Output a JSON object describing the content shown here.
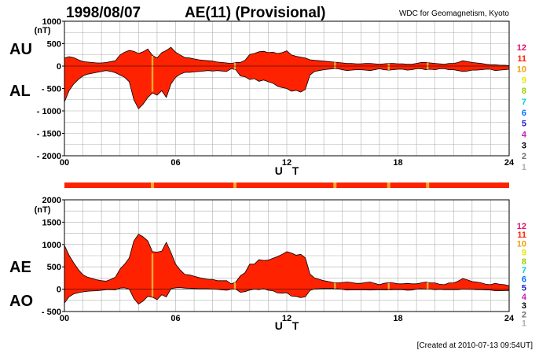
{
  "header": {
    "date": "1998/08/07",
    "title": "AE(11) (Provisional)",
    "source": "WDC for Geomagnetism, Kyoto"
  },
  "footer": {
    "created": "[Created at 2010-07-13 09:54UT]"
  },
  "colors": {
    "fill": "#ff2200",
    "outline": "#000000",
    "quality_yellow": "#f0a830"
  },
  "legend": {
    "levels": [
      {
        "label": "12",
        "color": "#e0106a"
      },
      {
        "label": "11",
        "color": "#ff2200"
      },
      {
        "label": "10",
        "color": "#f0a000"
      },
      {
        "label": "9",
        "color": "#e6e600"
      },
      {
        "label": "8",
        "color": "#9ad000"
      },
      {
        "label": "7",
        "color": "#00d0d0"
      },
      {
        "label": "6",
        "color": "#0070ff"
      },
      {
        "label": "5",
        "color": "#2020c0"
      },
      {
        "label": "4",
        "color": "#c020c0"
      },
      {
        "label": "3",
        "color": "#000000"
      },
      {
        "label": "2",
        "color": "#707070"
      },
      {
        "label": "1",
        "color": "#b0b0b0"
      }
    ]
  },
  "station_bar": {
    "base": "#ff2200",
    "marks": [
      {
        "hour": 4.75,
        "color": "#f0a830"
      },
      {
        "hour": 9.2,
        "color": "#f0a830"
      },
      {
        "hour": 14.6,
        "color": "#f0a830"
      },
      {
        "hour": 17.5,
        "color": "#f0a830"
      },
      {
        "hour": 19.6,
        "color": "#f0a830"
      }
    ]
  },
  "chart_data": [
    {
      "type": "area",
      "upper_label": "AU",
      "lower_label": "AL",
      "unit": "(nT)",
      "xlabel": "U T",
      "xlim": [
        0,
        24
      ],
      "ylim": [
        -2000,
        1000
      ],
      "xticks": [
        "00",
        "06",
        "12",
        "18",
        "24"
      ],
      "yticks": [
        "1000",
        "500",
        "0",
        "- 500",
        "- 1000",
        "- 1500",
        "- 2000"
      ],
      "x": [
        0,
        0.25,
        0.5,
        0.75,
        1,
        1.25,
        1.5,
        1.75,
        2,
        2.25,
        2.5,
        2.75,
        3,
        3.25,
        3.5,
        3.75,
        4,
        4.25,
        4.5,
        4.75,
        5,
        5.25,
        5.5,
        5.75,
        6,
        6.25,
        6.5,
        6.75,
        7,
        7.25,
        7.5,
        7.75,
        8,
        8.25,
        8.5,
        8.75,
        9,
        9.25,
        9.5,
        9.75,
        10,
        10.25,
        10.5,
        10.75,
        11,
        11.25,
        11.5,
        11.75,
        12,
        12.25,
        12.5,
        12.75,
        13,
        13.25,
        13.5,
        13.75,
        14,
        14.25,
        14.5,
        14.75,
        15,
        15.25,
        15.5,
        15.75,
        16,
        16.25,
        16.5,
        16.75,
        17,
        17.25,
        17.5,
        17.75,
        18,
        18.25,
        18.5,
        18.75,
        19,
        19.25,
        19.5,
        19.75,
        20,
        20.25,
        20.5,
        20.75,
        21,
        21.25,
        21.5,
        21.75,
        22,
        22.25,
        22.5,
        22.75,
        23,
        23.25,
        23.5,
        23.75,
        24
      ],
      "series": [
        {
          "name": "AU",
          "values": [
            180,
            210,
            190,
            140,
            100,
            90,
            80,
            70,
            70,
            80,
            100,
            120,
            250,
            310,
            350,
            330,
            280,
            320,
            380,
            240,
            180,
            300,
            350,
            420,
            310,
            250,
            190,
            180,
            160,
            140,
            130,
            120,
            110,
            90,
            80,
            70,
            60,
            80,
            80,
            130,
            260,
            280,
            320,
            330,
            300,
            310,
            280,
            300,
            340,
            250,
            220,
            200,
            180,
            140,
            130,
            120,
            110,
            100,
            90,
            80,
            70,
            60,
            60,
            50,
            50,
            60,
            60,
            50,
            40,
            50,
            60,
            60,
            50,
            50,
            40,
            40,
            60,
            80,
            80,
            70,
            60,
            50,
            40,
            60,
            60,
            80,
            120,
            100,
            80,
            70,
            60,
            40,
            30,
            30,
            20,
            20,
            10
          ]
        },
        {
          "name": "AL",
          "values": [
            -800,
            -550,
            -400,
            -300,
            -220,
            -180,
            -160,
            -140,
            -120,
            -100,
            -120,
            -150,
            -200,
            -250,
            -350,
            -750,
            -950,
            -850,
            -700,
            -600,
            -650,
            -550,
            -700,
            -400,
            -250,
            -180,
            -140,
            -140,
            -130,
            -120,
            -110,
            -100,
            -110,
            -100,
            -110,
            -120,
            -60,
            -80,
            -220,
            -240,
            -300,
            -280,
            -340,
            -310,
            -350,
            -380,
            -450,
            -480,
            -500,
            -560,
            -540,
            -580,
            -520,
            -200,
            -120,
            -100,
            -80,
            -70,
            -60,
            -60,
            -80,
            -100,
            -90,
            -80,
            -80,
            -90,
            -100,
            -80,
            -60,
            -80,
            -90,
            -80,
            -70,
            -70,
            -90,
            -80,
            -60,
            -60,
            -80,
            -70,
            -80,
            -60,
            -60,
            -80,
            -80,
            -100,
            -120,
            -110,
            -90,
            -90,
            -80,
            -70,
            -70,
            -100,
            -90,
            -80,
            -70
          ]
        }
      ]
    },
    {
      "type": "area",
      "upper_label": "AE",
      "lower_label": "AO",
      "unit": "(nT)",
      "xlabel": "U T",
      "xlim": [
        0,
        24
      ],
      "ylim": [
        -500,
        2000
      ],
      "xticks": [
        "00",
        "06",
        "12",
        "18",
        "24"
      ],
      "yticks": [
        "2000",
        "1500",
        "1000",
        "500",
        "0",
        "- 500"
      ],
      "series": [
        {
          "name": "AE",
          "values": [
            980,
            760,
            590,
            440,
            320,
            270,
            240,
            210,
            190,
            180,
            220,
            270,
            450,
            560,
            700,
            1080,
            1230,
            1170,
            1080,
            840,
            830,
            850,
            1050,
            820,
            560,
            430,
            330,
            320,
            290,
            260,
            240,
            220,
            220,
            190,
            190,
            190,
            120,
            160,
            300,
            370,
            560,
            560,
            660,
            640,
            650,
            690,
            730,
            780,
            840,
            810,
            760,
            780,
            700,
            340,
            250,
            220,
            190,
            170,
            150,
            140,
            150,
            160,
            150,
            130,
            130,
            150,
            160,
            130,
            100,
            130,
            150,
            140,
            120,
            120,
            130,
            120,
            120,
            140,
            160,
            140,
            140,
            110,
            100,
            140,
            140,
            180,
            240,
            210,
            170,
            160,
            140,
            110,
            100,
            130,
            110,
            100,
            80
          ]
        },
        {
          "name": "AO",
          "values": [
            -310,
            -170,
            -105,
            -80,
            -60,
            -45,
            -40,
            -35,
            -25,
            -10,
            -10,
            -15,
            25,
            30,
            0,
            -210,
            -335,
            -265,
            -160,
            -180,
            -235,
            -125,
            -175,
            10,
            30,
            35,
            25,
            20,
            15,
            10,
            10,
            10,
            0,
            -5,
            -15,
            -25,
            0,
            0,
            -70,
            -55,
            -20,
            0,
            -10,
            10,
            -25,
            -35,
            -85,
            -90,
            -80,
            -155,
            -160,
            -190,
            -170,
            -30,
            5,
            10,
            15,
            15,
            15,
            10,
            -5,
            -20,
            -15,
            -15,
            -15,
            -15,
            -20,
            -15,
            -10,
            -15,
            -15,
            -10,
            -10,
            -10,
            -25,
            -20,
            0,
            10,
            0,
            0,
            -10,
            -5,
            -10,
            -10,
            -10,
            -10,
            0,
            -5,
            -5,
            -10,
            -10,
            -15,
            -20,
            -35,
            -35,
            -30,
            -30
          ]
        }
      ]
    }
  ]
}
